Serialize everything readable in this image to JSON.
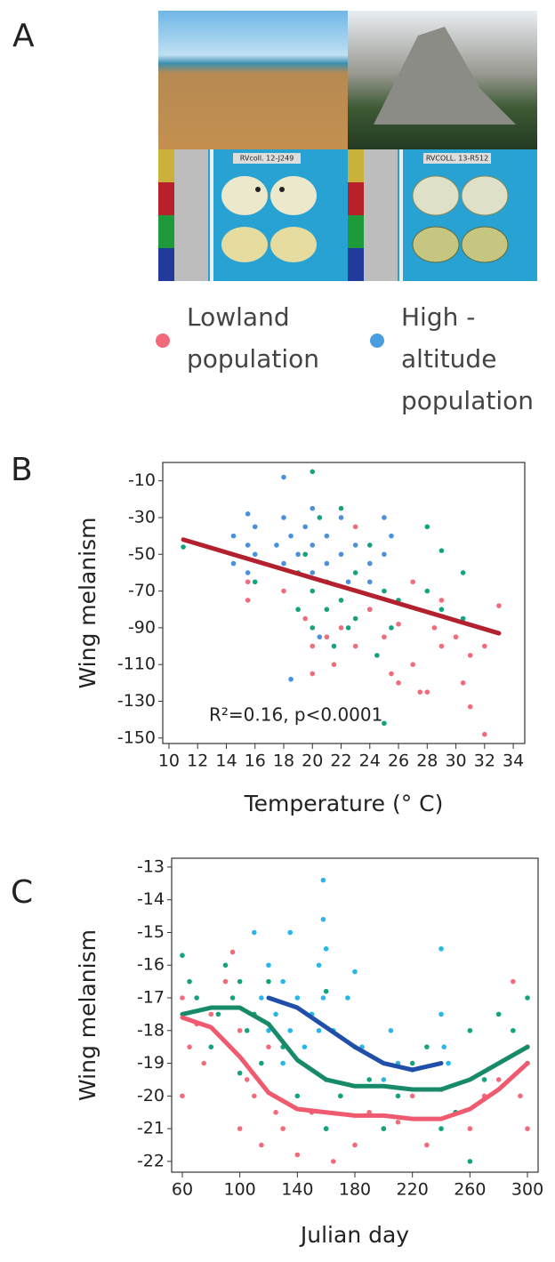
{
  "panel_a": {
    "label": "A",
    "specimen_labels": [
      "RVcoll. 12-J249",
      "RVCOLL. 13-R512"
    ],
    "legend": [
      {
        "lines": [
          "Lowland",
          "population"
        ],
        "color": "#f26b7a"
      },
      {
        "lines": [
          "High -",
          "altitude",
          "population"
        ],
        "color": "#4a9ee0"
      }
    ]
  },
  "chart_data": [
    {
      "type": "scatter",
      "label": "B",
      "ylabel": "Wing melanism",
      "xlabel": "Temperature (° C)",
      "annotation": "R²=0.16, p<0.0001",
      "xlim": [
        9.57,
        34.8
      ],
      "ylim": [
        -153,
        0
      ],
      "xticks": [
        10,
        12,
        14,
        16,
        18,
        20,
        22,
        24,
        26,
        28,
        30,
        32,
        34
      ],
      "yticks": [
        -10,
        -30,
        -50,
        -70,
        -90,
        -110,
        -130,
        -150
      ],
      "series": [
        {
          "mode": "markers",
          "color": "#4a90dd",
          "x": [
            14.5,
            14.5,
            15.5,
            15.5,
            15.5,
            16,
            16,
            17.5,
            18,
            18,
            18,
            18.5,
            18.5,
            19,
            19.5,
            20,
            20,
            20,
            21,
            21,
            22,
            22,
            22.5,
            23,
            24,
            24,
            25,
            25,
            25.5,
            20.5
          ],
          "values": [
            -40,
            -55,
            -28,
            -45,
            -60,
            -35,
            -50,
            -45,
            -8,
            -30,
            -55,
            -40,
            -118,
            -50,
            -35,
            -25,
            -45,
            -60,
            -40,
            -55,
            -30,
            -50,
            -65,
            -45,
            -55,
            -65,
            -30,
            -50,
            -40,
            -95
          ]
        },
        {
          "mode": "markers",
          "color": "#13a37e",
          "x": [
            11,
            16,
            19,
            19,
            19.5,
            20,
            20,
            20,
            20.5,
            21,
            21,
            21.5,
            22,
            22,
            22.5,
            23,
            23,
            24,
            24,
            24.5,
            25,
            25,
            25.5,
            26,
            28,
            28,
            29,
            29,
            30.5,
            30.5
          ],
          "values": [
            -46,
            -65,
            -60,
            -80,
            -50,
            -5,
            -70,
            -90,
            -30,
            -65,
            -80,
            -100,
            -25,
            -75,
            -90,
            -60,
            -85,
            -45,
            -80,
            -105,
            -142,
            -70,
            -90,
            -75,
            -35,
            -70,
            -48,
            -80,
            -60,
            -85
          ]
        },
        {
          "mode": "markers",
          "color": "#f26b7a",
          "x": [
            15.5,
            15.5,
            18,
            19.5,
            20,
            20,
            21,
            21.5,
            22,
            23,
            23,
            24,
            25,
            25.5,
            26,
            27,
            27.5,
            28,
            28.5,
            29,
            29,
            30,
            31,
            31,
            32,
            32,
            33,
            30.5,
            27,
            26
          ],
          "values": [
            -65,
            -75,
            -70,
            -85,
            -100,
            -115,
            -95,
            -110,
            -90,
            -35,
            -100,
            -80,
            -95,
            -115,
            -120,
            -110,
            -125,
            -125,
            -90,
            -100,
            -75,
            -95,
            -105,
            -133,
            -148,
            -100,
            -78,
            -120,
            -65,
            -88
          ]
        },
        {
          "mode": "lines",
          "color": "#b3202e",
          "x": [
            11,
            33
          ],
          "values": [
            -42,
            -93
          ]
        }
      ]
    },
    {
      "type": "scatter",
      "label": "C",
      "ylabel": "Wing melanism",
      "xlabel": "Julian day",
      "xlim": [
        52.6,
        307.4
      ],
      "ylim": [
        -22.33,
        -12.73
      ],
      "xticks": [
        60,
        100,
        140,
        180,
        220,
        260,
        300
      ],
      "yticks": [
        -22,
        -21,
        -20,
        -19,
        -18,
        -17,
        -16,
        -15,
        -14,
        -13
      ],
      "series": [
        {
          "mode": "markers",
          "color": "#f26b7a",
          "x": [
            60,
            60,
            65,
            70,
            75,
            80,
            90,
            95,
            100,
            100,
            105,
            110,
            115,
            120,
            125,
            130,
            140,
            150,
            160,
            165,
            170,
            180,
            190,
            200,
            210,
            220,
            230,
            240,
            250,
            260,
            270,
            280,
            290,
            295,
            300,
            300
          ],
          "values": [
            -17,
            -20,
            -18.5,
            -17.8,
            -19,
            -17.5,
            -16.5,
            -15.6,
            -18,
            -21,
            -19.5,
            -20,
            -21.5,
            -18.5,
            -20.5,
            -21,
            -21.8,
            -20.5,
            -21,
            -22,
            -20,
            -21.5,
            -20.5,
            -21,
            -20.8,
            -20,
            -21.5,
            -19.8,
            -20.5,
            -21,
            -20,
            -19.5,
            -16.5,
            -20,
            -21,
            -18.5
          ]
        },
        {
          "mode": "markers",
          "color": "#13a37e",
          "x": [
            60,
            65,
            70,
            80,
            85,
            90,
            95,
            100,
            105,
            110,
            115,
            120,
            130,
            140,
            150,
            160,
            170,
            180,
            190,
            200,
            210,
            220,
            230,
            240,
            250,
            260,
            270,
            280,
            290,
            300,
            300,
            260,
            160,
            100
          ],
          "values": [
            -15.7,
            -16.5,
            -17,
            -18.5,
            -17.5,
            -16,
            -17,
            -16.5,
            -18,
            -17.5,
            -19,
            -16.5,
            -18.5,
            -20,
            -17.5,
            -21,
            -20,
            -18.5,
            -19.5,
            -21,
            -20,
            -19,
            -18.5,
            -21,
            -20.5,
            -22,
            -19.5,
            -17.5,
            -18,
            -19,
            -17,
            -18,
            -16.8,
            -19.3
          ]
        },
        {
          "mode": "markers",
          "color": "#29b6e8",
          "x": [
            110,
            115,
            120,
            120,
            125,
            130,
            130,
            135,
            135,
            140,
            145,
            150,
            155,
            155,
            158,
            158,
            160,
            160,
            165,
            175,
            180,
            185,
            200,
            205,
            210,
            220,
            240,
            240,
            242,
            245,
            158
          ],
          "values": [
            -15,
            -17,
            -16,
            -18,
            -17.5,
            -16.5,
            -19,
            -15,
            -18,
            -17,
            -18.5,
            -17.5,
            -16,
            -18,
            -13.4,
            -14.6,
            -15.5,
            -19.5,
            -18,
            -17,
            -16.2,
            -18.5,
            -19.5,
            -18,
            -19,
            -19.2,
            -15.5,
            -17.5,
            -18.5,
            -19,
            -17
          ]
        },
        {
          "mode": "lines",
          "color": "#1f4fa8",
          "x": [
            120,
            140,
            160,
            180,
            200,
            220,
            240
          ],
          "values": [
            -17,
            -17.3,
            -17.9,
            -18.5,
            -19,
            -19.2,
            -19
          ]
        },
        {
          "mode": "lines",
          "color": "#178a6a",
          "x": [
            60,
            80,
            100,
            120,
            140,
            160,
            180,
            200,
            220,
            240,
            260,
            280,
            300
          ],
          "values": [
            -17.5,
            -17.3,
            -17.3,
            -17.8,
            -18.9,
            -19.5,
            -19.7,
            -19.7,
            -19.8,
            -19.8,
            -19.5,
            -19,
            -18.5
          ]
        },
        {
          "mode": "lines",
          "color": "#f05a6e",
          "x": [
            60,
            80,
            100,
            120,
            140,
            160,
            180,
            200,
            220,
            240,
            260,
            280,
            300
          ],
          "values": [
            -17.6,
            -17.9,
            -18.8,
            -19.9,
            -20.4,
            -20.5,
            -20.6,
            -20.6,
            -20.7,
            -20.7,
            -20.4,
            -19.8,
            -19
          ]
        }
      ]
    }
  ]
}
